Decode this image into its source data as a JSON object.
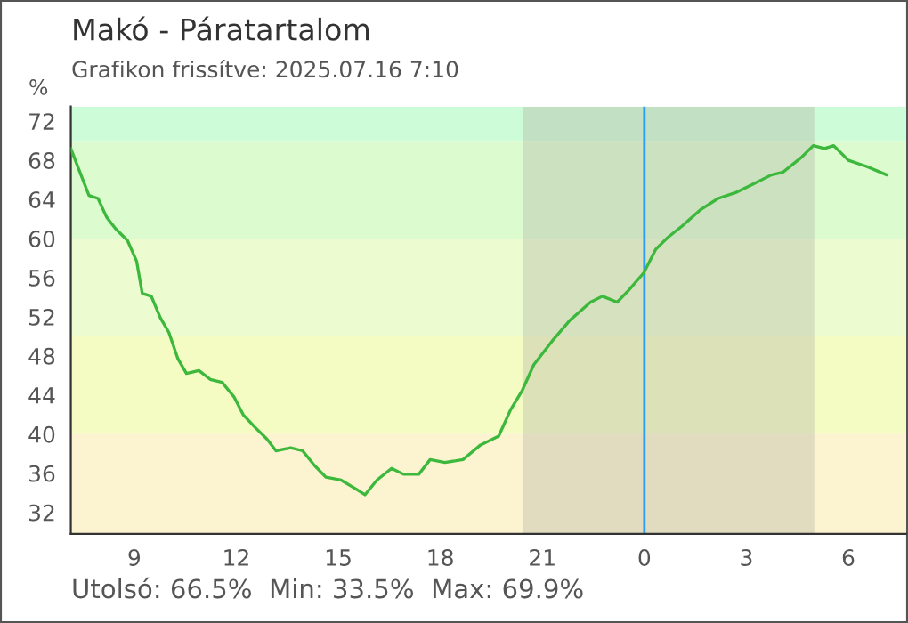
{
  "chart_data": {
    "type": "line",
    "title": "Makó - Páratartalom",
    "subtitle": "Grafikon frissítve: 2025.07.16 7:10",
    "ylabel": "%",
    "annotations": [
      "Utolsó: 66.5%  Min: 33.5%  Max: 69.9%"
    ],
    "x": [
      "2025-07-15T07:08",
      "2025-07-15T07:24",
      "2025-07-15T07:40",
      "2025-07-15T07:56",
      "2025-07-15T08:11",
      "2025-07-15T08:27",
      "2025-07-15T08:48",
      "2025-07-15T09:04",
      "2025-07-15T09:14",
      "2025-07-15T09:30",
      "2025-07-15T09:46",
      "2025-07-15T10:01",
      "2025-07-15T10:17",
      "2025-07-15T10:32",
      "2025-07-15T10:54",
      "2025-07-15T11:14",
      "2025-07-15T11:35",
      "2025-07-15T11:56",
      "2025-07-15T12:12",
      "2025-07-15T12:33",
      "2025-07-15T12:54",
      "2025-07-15T13:10",
      "2025-07-15T13:36",
      "2025-07-15T13:57",
      "2025-07-15T14:18",
      "2025-07-15T14:38",
      "2025-07-15T15:05",
      "2025-07-15T15:31",
      "2025-07-15T15:47",
      "2025-07-15T16:08",
      "2025-07-15T16:34",
      "2025-07-15T16:55",
      "2025-07-15T17:22",
      "2025-07-15T17:42",
      "2025-07-15T18:08",
      "2025-07-15T18:40",
      "2025-07-15T19:11",
      "2025-07-15T19:43",
      "2025-07-15T20:04",
      "2025-07-15T20:24",
      "2025-07-15T20:45",
      "2025-07-15T21:17",
      "2025-07-15T21:48",
      "2025-07-15T22:25",
      "2025-07-15T22:46",
      "2025-07-15T23:12",
      "2025-07-15T23:32",
      "2025-07-15T23:59",
      "2025-07-16T00:20",
      "2025-07-16T00:41",
      "2025-07-16T01:07",
      "2025-07-16T01:38",
      "2025-07-16T02:10",
      "2025-07-16T02:41",
      "2025-07-16T03:13",
      "2025-07-16T03:44",
      "2025-07-16T04:05",
      "2025-07-16T04:37",
      "2025-07-16T04:58",
      "2025-07-16T05:18",
      "2025-07-16T05:34",
      "2025-07-16T06:00",
      "2025-07-16T06:31",
      "2025-07-16T07:08"
    ],
    "series": [
      {
        "color": "#3cb83c",
        "values": [
          69.2,
          66.8,
          64.4,
          64.1,
          62.2,
          61.0,
          59.8,
          57.7,
          54.4,
          54.1,
          51.9,
          50.4,
          47.7,
          46.2,
          46.5,
          45.6,
          45.3,
          43.8,
          42.0,
          40.7,
          39.5,
          38.3,
          38.6,
          38.3,
          36.8,
          35.6,
          35.3,
          34.4,
          33.8,
          35.3,
          36.5,
          35.9,
          35.9,
          37.4,
          37.1,
          37.4,
          38.9,
          39.8,
          42.5,
          44.4,
          47.1,
          49.5,
          51.6,
          53.5,
          54.1,
          53.5,
          54.7,
          56.5,
          58.9,
          60.1,
          61.3,
          62.9,
          64.1,
          64.7,
          65.6,
          66.5,
          66.8,
          68.3,
          69.5,
          69.2,
          69.5,
          68.0,
          67.4,
          66.5
        ]
      }
    ],
    "xlim": [
      "2025-07-15T07:08",
      "2025-07-16T07:42"
    ],
    "ylim": [
      29.8,
      73.5
    ],
    "xticks": [
      {
        "value": "2025-07-15T09:00",
        "label": "9"
      },
      {
        "value": "2025-07-15T12:00",
        "label": "12"
      },
      {
        "value": "2025-07-15T15:00",
        "label": "15"
      },
      {
        "value": "2025-07-15T18:00",
        "label": "18"
      },
      {
        "value": "2025-07-15T21:00",
        "label": "21"
      },
      {
        "value": "2025-07-16T00:00",
        "label": "0"
      },
      {
        "value": "2025-07-16T03:00",
        "label": "3"
      },
      {
        "value": "2025-07-16T06:00",
        "label": "6"
      }
    ],
    "yticks": [
      32,
      36,
      40,
      44,
      48,
      52,
      56,
      60,
      64,
      68,
      72
    ],
    "bands": [
      {
        "axis": "y",
        "from": 70,
        "to": 73.5,
        "color": "#ccfcd8"
      },
      {
        "axis": "y",
        "from": 60,
        "to": 70,
        "color": "#dcfcd0"
      },
      {
        "axis": "y",
        "from": 50,
        "to": 60,
        "color": "#ecfcd0"
      },
      {
        "axis": "y",
        "from": 40,
        "to": 50,
        "color": "#f4fcc4"
      },
      {
        "axis": "y",
        "from": 29.8,
        "to": 40,
        "color": "#fcf4d0"
      },
      {
        "axis": "x",
        "from": "2025-07-15T20:25",
        "to": "2025-07-16T05:00",
        "color": "#b0b0a0"
      }
    ],
    "ref_lines": [
      {
        "axis": "x",
        "value": "2025-07-16T00:00",
        "color": "#2a9df4"
      }
    ],
    "grid": false,
    "legend": false,
    "marker": "none",
    "line_style": "solid"
  }
}
